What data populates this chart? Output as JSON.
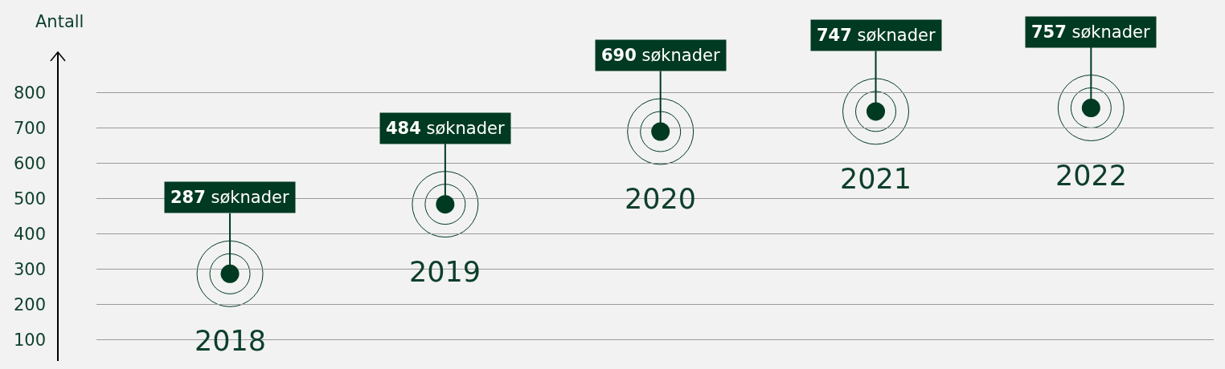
{
  "chart_data": {
    "type": "scatter",
    "ylabel": "Antall",
    "categories": [
      "2018",
      "2019",
      "2020",
      "2021",
      "2022"
    ],
    "values": [
      287,
      484,
      690,
      747,
      757
    ],
    "value_labels": [
      "287 søknader",
      "484 søknader",
      "690 søknader",
      "747 søknader",
      "757 søknader"
    ],
    "color": "#003a22",
    "ylim": [
      40,
      915
    ],
    "yticks": [
      100,
      200,
      300,
      400,
      500,
      600,
      700,
      800
    ],
    "grid": "y",
    "marker": "circle",
    "tick_labels": "y"
  }
}
